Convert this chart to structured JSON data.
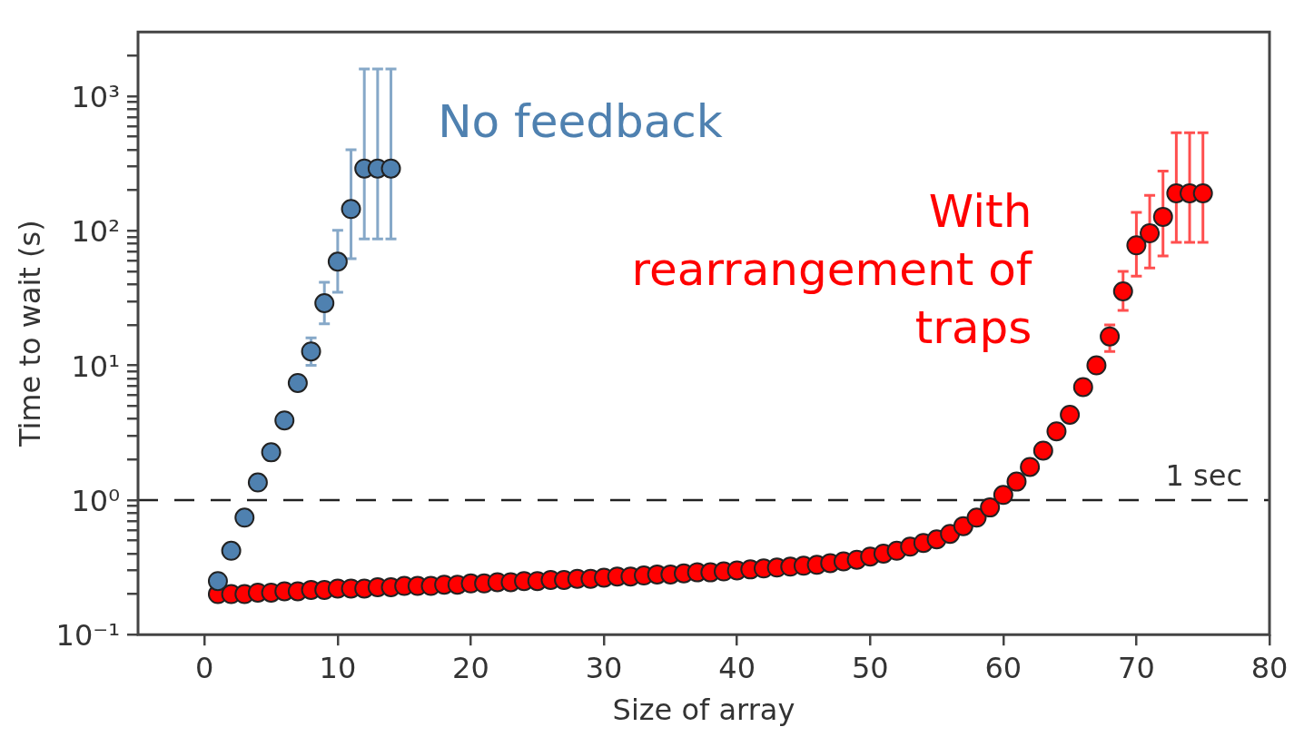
{
  "chart_data": {
    "type": "scatter",
    "xlabel": "Size of array",
    "ylabel": "Time to wait (s)",
    "log": "y",
    "marker": "circle",
    "legend": "top",
    "xlim": [
      -5,
      80
    ],
    "xticks": [
      0,
      10,
      20,
      30,
      40,
      50,
      60,
      70,
      80
    ],
    "ylim": [
      0.1,
      3000
    ],
    "yticks": [
      {
        "value": 0.1,
        "label": "10⁻¹"
      },
      {
        "value": 0.2,
        "label": null
      },
      {
        "value": 0.3,
        "label": null
      },
      {
        "value": 0.4,
        "label": null
      },
      {
        "value": 0.5,
        "label": null
      },
      {
        "value": 0.6,
        "label": null
      },
      {
        "value": 0.7,
        "label": null
      },
      {
        "value": 0.8,
        "label": null
      },
      {
        "value": 0.9,
        "label": null
      },
      {
        "value": 1,
        "label": "10⁰"
      },
      {
        "value": 2,
        "label": null
      },
      {
        "value": 3,
        "label": null
      },
      {
        "value": 4,
        "label": null
      },
      {
        "value": 5,
        "label": null
      },
      {
        "value": 6,
        "label": null
      },
      {
        "value": 7,
        "label": null
      },
      {
        "value": 8,
        "label": null
      },
      {
        "value": 9,
        "label": null
      },
      {
        "value": 10,
        "label": "10¹"
      },
      {
        "value": 20,
        "label": null
      },
      {
        "value": 30,
        "label": null
      },
      {
        "value": 40,
        "label": null
      },
      {
        "value": 50,
        "label": null
      },
      {
        "value": 60,
        "label": null
      },
      {
        "value": 70,
        "label": null
      },
      {
        "value": 80,
        "label": null
      },
      {
        "value": 90,
        "label": null
      },
      {
        "value": 100,
        "label": "10²"
      },
      {
        "value": 200,
        "label": null
      },
      {
        "value": 300,
        "label": null
      },
      {
        "value": 400,
        "label": null
      },
      {
        "value": 500,
        "label": null
      },
      {
        "value": 600,
        "label": null
      },
      {
        "value": 700,
        "label": null
      },
      {
        "value": 800,
        "label": null
      },
      {
        "value": 900,
        "label": null
      },
      {
        "value": 1000,
        "label": "10³"
      },
      {
        "value": 2000,
        "label": null
      }
    ],
    "ref_lines": [
      {
        "axis": "y",
        "value": 1,
        "label": "1 sec",
        "color": "#222222",
        "line_style": "dashed"
      }
    ],
    "series": [
      {
        "name": "No feedback",
        "color": "#4f81b0",
        "x": [
          1,
          2,
          3,
          4,
          5,
          6,
          7,
          8,
          9,
          10,
          11,
          12,
          13,
          14
        ],
        "values": [
          0.25,
          0.42,
          0.74,
          1.35,
          2.26,
          3.9,
          7.4,
          12.7,
          29,
          59,
          145,
          290,
          290,
          290
        ],
        "errors": [
          null,
          null,
          null,
          null,
          null,
          null,
          null,
          [
            10,
            16
          ],
          [
            20.4,
            41.5
          ],
          [
            35,
            101
          ],
          [
            62,
            400
          ],
          [
            87,
            1590
          ],
          [
            87,
            1590
          ],
          [
            87,
            1590
          ]
        ]
      },
      {
        "name": "With rearrangement of traps",
        "color": "#ff0000",
        "x": [
          1,
          2,
          3,
          4,
          5,
          6,
          7,
          8,
          9,
          10,
          11,
          12,
          13,
          14,
          15,
          16,
          17,
          18,
          19,
          20,
          21,
          22,
          23,
          24,
          25,
          26,
          27,
          28,
          29,
          30,
          31,
          32,
          33,
          34,
          35,
          36,
          37,
          38,
          39,
          40,
          41,
          42,
          43,
          44,
          45,
          46,
          47,
          48,
          49,
          50,
          51,
          52,
          53,
          54,
          55,
          56,
          57,
          58,
          59,
          60,
          61,
          62,
          63,
          64,
          65,
          66,
          67,
          68,
          69,
          70,
          71,
          72,
          73,
          74,
          75
        ],
        "values": [
          0.2,
          0.2,
          0.2,
          0.205,
          0.205,
          0.21,
          0.21,
          0.215,
          0.215,
          0.22,
          0.22,
          0.22,
          0.225,
          0.225,
          0.23,
          0.23,
          0.23,
          0.235,
          0.235,
          0.24,
          0.24,
          0.245,
          0.245,
          0.25,
          0.25,
          0.255,
          0.255,
          0.26,
          0.26,
          0.265,
          0.27,
          0.27,
          0.275,
          0.28,
          0.28,
          0.285,
          0.29,
          0.29,
          0.295,
          0.3,
          0.305,
          0.31,
          0.315,
          0.32,
          0.325,
          0.33,
          0.34,
          0.35,
          0.36,
          0.38,
          0.4,
          0.42,
          0.45,
          0.48,
          0.51,
          0.56,
          0.64,
          0.74,
          0.88,
          1.09,
          1.37,
          1.76,
          2.33,
          3.24,
          4.3,
          6.9,
          10,
          16.4,
          35.5,
          78,
          96,
          127,
          190,
          190,
          190
        ],
        "errors": [
          null,
          null,
          null,
          null,
          null,
          null,
          null,
          null,
          null,
          null,
          null,
          null,
          null,
          null,
          null,
          null,
          null,
          null,
          null,
          null,
          null,
          null,
          null,
          null,
          null,
          null,
          null,
          null,
          null,
          null,
          null,
          null,
          null,
          null,
          null,
          null,
          null,
          null,
          null,
          null,
          null,
          null,
          null,
          null,
          null,
          null,
          null,
          null,
          null,
          null,
          null,
          null,
          null,
          null,
          null,
          null,
          null,
          null,
          null,
          null,
          null,
          null,
          null,
          null,
          null,
          null,
          null,
          [
            12.7,
            20
          ],
          [
            25.6,
            50
          ],
          [
            46,
            137
          ],
          [
            53,
            183
          ],
          [
            65,
            278
          ],
          [
            82,
            536
          ],
          [
            82,
            536
          ],
          [
            82,
            536
          ]
        ]
      }
    ]
  }
}
